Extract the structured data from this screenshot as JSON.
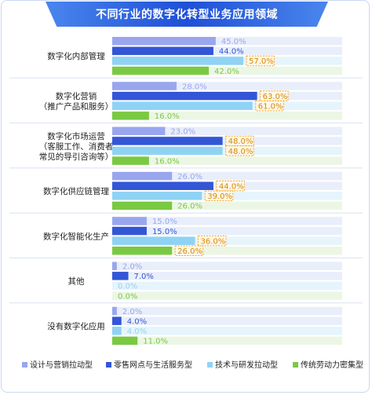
{
  "chart_data": {
    "type": "bar",
    "orientation": "horizontal",
    "title": "不同行业的数字化转型业务应用领域",
    "categories": [
      [
        "数字化内部管理"
      ],
      [
        "数字化营销",
        "（推广产品和服务）"
      ],
      [
        "数字化市场运营",
        "（客服工作、消费者",
        "常见的导引咨询等）"
      ],
      [
        "数字化供应链管理"
      ],
      [
        "数字化智能化生产"
      ],
      [
        "其他"
      ],
      [
        "没有数字化应用"
      ]
    ],
    "series": [
      {
        "name": "设计与营销拉动型",
        "color": "#99a6ee",
        "values": [
          45.0,
          28.0,
          23.0,
          26.0,
          15.0,
          2.0,
          2.0
        ]
      },
      {
        "name": "零售网点与生活服务型",
        "color": "#3356d6",
        "values": [
          44.0,
          63.0,
          48.0,
          44.0,
          15.0,
          7.0,
          4.0
        ]
      },
      {
        "name": "技术与研发拉动型",
        "color": "#8fd3f4",
        "values": [
          57.0,
          61.0,
          48.0,
          39.0,
          36.0,
          0.0,
          4.0
        ]
      },
      {
        "name": "传统劳动力密集型",
        "color": "#7ac943",
        "values": [
          42.0,
          16.0,
          16.0,
          26.0,
          26.0,
          0.0,
          11.0
        ]
      }
    ],
    "value_labels": [
      [
        "45.0%",
        "44.0%",
        "57.0%",
        "42.0%"
      ],
      [
        "28.0%",
        "63.0%",
        "61.0%",
        "16.0%"
      ],
      [
        "23.0%",
        "48.0%",
        "48.0%",
        "16.0%"
      ],
      [
        "26.0%",
        "44.0%",
        "39.0%",
        "26.0%"
      ],
      [
        "15.0%",
        "15.0%",
        "36.0%",
        "26.0%"
      ],
      [
        "2.0%",
        "7.0%",
        "0.0%",
        "0.0%"
      ],
      [
        "2.0%",
        "4.0%",
        "4.0%",
        "11.0%"
      ]
    ],
    "highlighted": [
      [
        false,
        false,
        true,
        false
      ],
      [
        false,
        true,
        true,
        false
      ],
      [
        false,
        true,
        true,
        false
      ],
      [
        false,
        true,
        true,
        false
      ],
      [
        false,
        false,
        true,
        true
      ],
      [
        false,
        false,
        false,
        false
      ],
      [
        false,
        false,
        false,
        false
      ]
    ],
    "xlim": [
      0,
      100
    ],
    "legend_position": "bottom",
    "grid": false
  }
}
